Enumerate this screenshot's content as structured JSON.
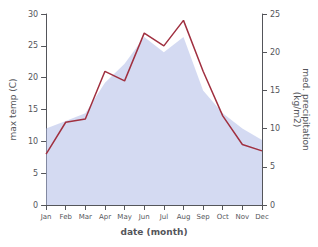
{
  "chart_data": {
    "type": "line",
    "categories": [
      "Jan",
      "Feb",
      "Mar",
      "Apr",
      "May",
      "Jun",
      "Jul",
      "Aug",
      "Sep",
      "Oct",
      "Nov",
      "Dec"
    ],
    "xlabel": "date (month)",
    "ylabel": "max temp (C)",
    "y2label": "med. precipitation\n(kg/m2)",
    "ylim": [
      0,
      30
    ],
    "yticks": [
      0,
      5,
      10,
      15,
      20,
      25,
      30
    ],
    "y2lim": [
      0,
      25
    ],
    "y2ticks": [
      0,
      5,
      10,
      15,
      20,
      25
    ],
    "grid": false,
    "series": [
      {
        "type": "area",
        "axis": "y2",
        "color": "#b0bce8",
        "values": [
          10.0,
          11.0,
          12.0,
          16.0,
          18.5,
          22.0,
          20.0,
          22.0,
          15.0,
          12.0,
          10.0,
          8.5
        ]
      },
      {
        "type": "line",
        "color": "#a03040",
        "values": [
          8.0,
          13.0,
          13.5,
          21.0,
          19.5,
          27.0,
          25.0,
          29.0,
          21.0,
          14.0,
          9.5,
          8.5
        ]
      }
    ]
  }
}
